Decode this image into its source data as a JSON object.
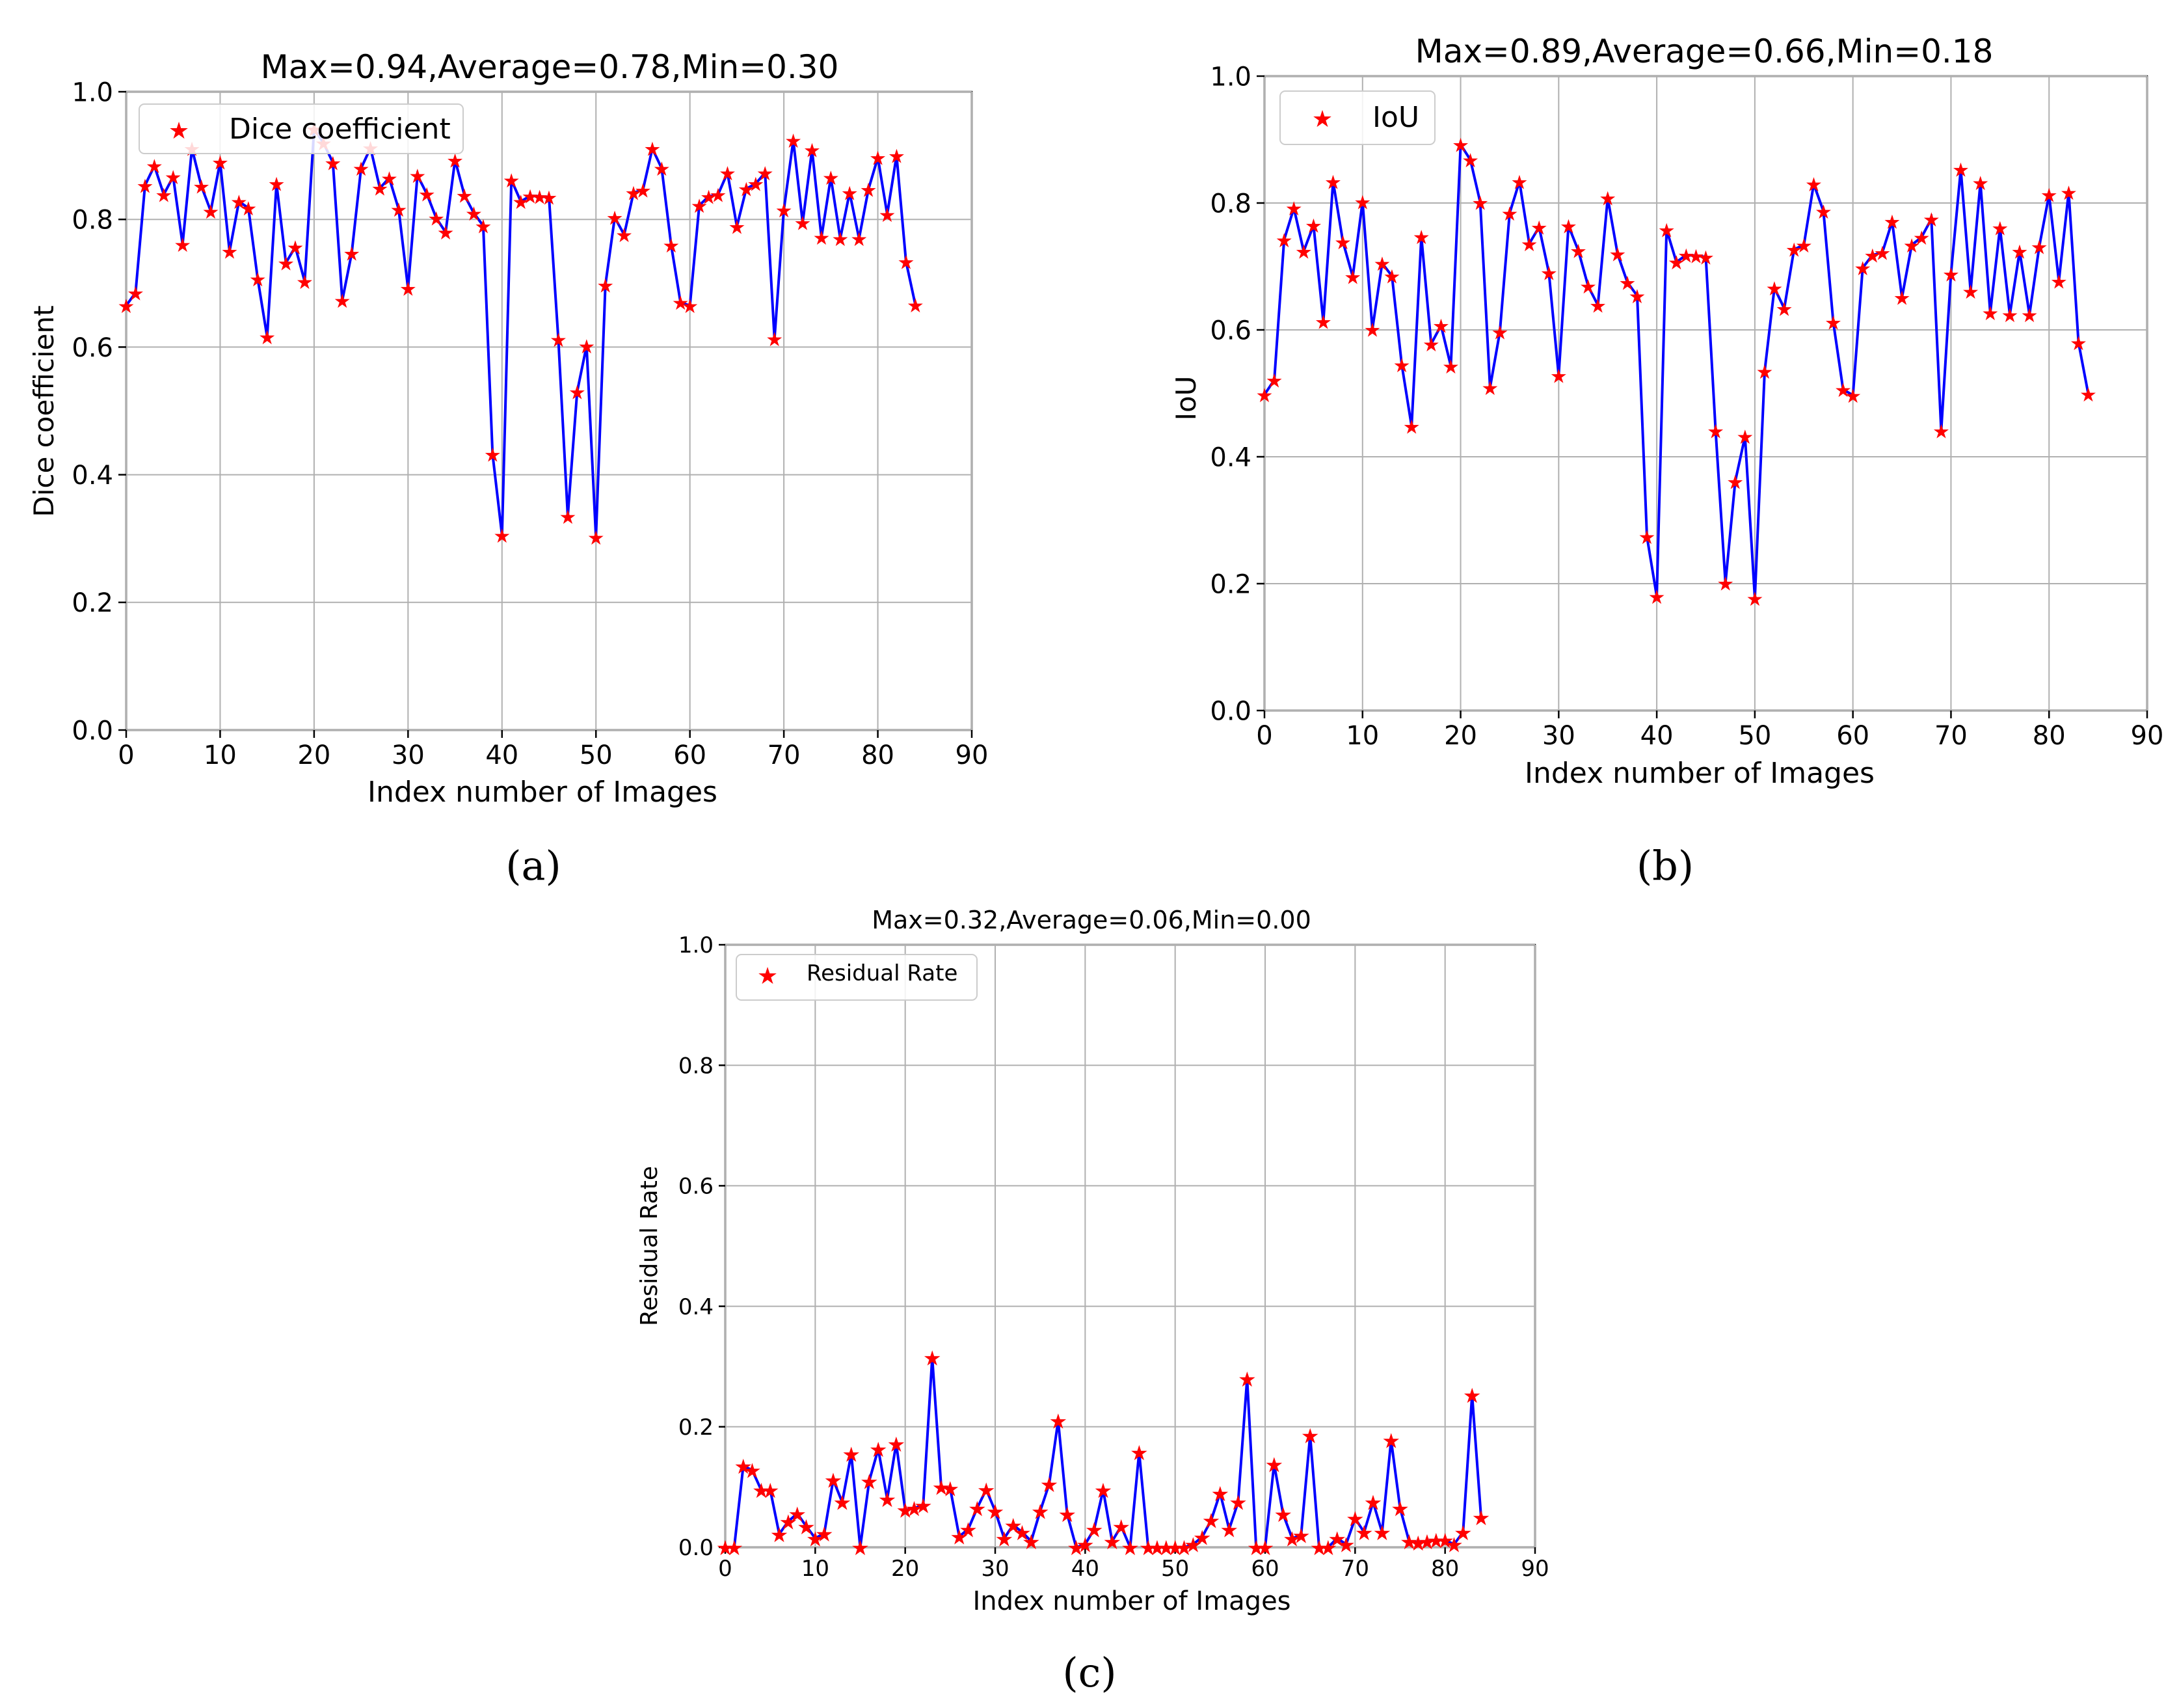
{
  "chart_data": [
    {
      "type": "line",
      "panel_label": "(a)",
      "title": "Max=0.94,Average=0.78,Min=0.30",
      "xlabel": "Index number of Images",
      "ylabel": "Dice coefficient",
      "xlim": [
        0,
        90
      ],
      "ylim": [
        0,
        1.0
      ],
      "xticks": [
        0,
        10,
        20,
        30,
        40,
        50,
        60,
        70,
        80,
        90
      ],
      "yticks": [
        0.0,
        0.2,
        0.4,
        0.6,
        0.8,
        1.0
      ],
      "xtick_labels": [
        "0",
        "10",
        "20",
        "30",
        "40",
        "50",
        "60",
        "70",
        "80",
        "90"
      ],
      "ytick_labels": [
        "0.0",
        "0.2",
        "0.4",
        "0.6",
        "0.8",
        "1.0"
      ],
      "grid": true,
      "legend": {
        "position": "top-left",
        "entries": [
          "Dice coefficient"
        ]
      },
      "series": [
        {
          "name": "Dice coefficient",
          "line_color": "#0000ff",
          "marker_color": "#ff0000",
          "x": [
            0,
            1,
            2,
            3,
            4,
            5,
            6,
            7,
            8,
            9,
            10,
            11,
            12,
            13,
            14,
            15,
            16,
            17,
            18,
            19,
            20,
            21,
            22,
            23,
            24,
            25,
            26,
            27,
            28,
            29,
            30,
            31,
            32,
            33,
            34,
            35,
            36,
            37,
            38,
            39,
            40,
            41,
            42,
            43,
            44,
            45,
            46,
            47,
            48,
            49,
            50,
            51,
            52,
            53,
            54,
            55,
            56,
            57,
            58,
            59,
            60,
            61,
            62,
            63,
            64,
            65,
            66,
            67,
            68,
            69,
            70,
            71,
            72,
            73,
            74,
            75,
            76,
            77,
            78,
            79,
            80,
            81,
            82,
            83,
            84
          ],
          "values": [
            0.665,
            0.685,
            0.853,
            0.884,
            0.839,
            0.867,
            0.761,
            0.911,
            0.852,
            0.813,
            0.89,
            0.75,
            0.828,
            0.818,
            0.707,
            0.616,
            0.856,
            0.732,
            0.757,
            0.703,
            0.942,
            0.92,
            0.889,
            0.673,
            0.747,
            0.88,
            0.912,
            0.849,
            0.865,
            0.816,
            0.692,
            0.869,
            0.84,
            0.802,
            0.78,
            0.893,
            0.838,
            0.81,
            0.79,
            0.432,
            0.305,
            0.862,
            0.828,
            0.837,
            0.836,
            0.835,
            0.612,
            0.335,
            0.53,
            0.602,
            0.302,
            0.697,
            0.803,
            0.776,
            0.842,
            0.846,
            0.911,
            0.88,
            0.76,
            0.67,
            0.665,
            0.822,
            0.836,
            0.839,
            0.873,
            0.789,
            0.848,
            0.856,
            0.873,
            0.613,
            0.815,
            0.924,
            0.795,
            0.909,
            0.772,
            0.866,
            0.77,
            0.842,
            0.77,
            0.847,
            0.897,
            0.808,
            0.9,
            0.734,
            0.666
          ]
        }
      ]
    },
    {
      "type": "line",
      "panel_label": "(b)",
      "title": "Max=0.89,Average=0.66,Min=0.18",
      "xlabel": "Index number of Images",
      "ylabel": "IoU",
      "xlim": [
        0,
        90
      ],
      "ylim": [
        0,
        1.0
      ],
      "xticks": [
        0,
        10,
        20,
        30,
        40,
        50,
        60,
        70,
        80,
        90
      ],
      "yticks": [
        0.0,
        0.2,
        0.4,
        0.6,
        0.8,
        1.0
      ],
      "xtick_labels": [
        "0",
        "10",
        "20",
        "30",
        "40",
        "50",
        "60",
        "70",
        "80",
        "90"
      ],
      "ytick_labels": [
        "0.0",
        "0.2",
        "0.4",
        "0.6",
        "0.8",
        "1.0"
      ],
      "grid": true,
      "legend": {
        "position": "top-left",
        "entries": [
          "IoU"
        ]
      },
      "series": [
        {
          "name": "IoU",
          "line_color": "#0000ff",
          "marker_color": "#ff0000",
          "x": [
            0,
            1,
            2,
            3,
            4,
            5,
            6,
            7,
            8,
            9,
            10,
            11,
            12,
            13,
            14,
            15,
            16,
            17,
            18,
            19,
            20,
            21,
            22,
            23,
            24,
            25,
            26,
            27,
            28,
            29,
            30,
            31,
            32,
            33,
            34,
            35,
            36,
            37,
            38,
            39,
            40,
            41,
            42,
            43,
            44,
            45,
            46,
            47,
            48,
            49,
            50,
            51,
            52,
            53,
            54,
            55,
            56,
            57,
            58,
            59,
            60,
            61,
            62,
            63,
            64,
            65,
            66,
            67,
            68,
            69,
            70,
            71,
            72,
            73,
            74,
            75,
            76,
            77,
            78,
            79,
            80,
            81,
            82,
            83,
            84
          ],
          "values": [
            0.498,
            0.521,
            0.742,
            0.792,
            0.724,
            0.765,
            0.613,
            0.834,
            0.739,
            0.684,
            0.802,
            0.601,
            0.705,
            0.685,
            0.545,
            0.448,
            0.747,
            0.578,
            0.607,
            0.543,
            0.892,
            0.868,
            0.801,
            0.509,
            0.597,
            0.784,
            0.834,
            0.736,
            0.762,
            0.69,
            0.528,
            0.764,
            0.725,
            0.669,
            0.639,
            0.808,
            0.72,
            0.675,
            0.654,
            0.274,
            0.18,
            0.758,
            0.707,
            0.718,
            0.717,
            0.715,
            0.441,
            0.201,
            0.361,
            0.432,
            0.177,
            0.535,
            0.666,
            0.634,
            0.727,
            0.734,
            0.83,
            0.787,
            0.612,
            0.506,
            0.497,
            0.698,
            0.718,
            0.722,
            0.771,
            0.651,
            0.734,
            0.746,
            0.775,
            0.441,
            0.688,
            0.853,
            0.661,
            0.832,
            0.627,
            0.761,
            0.624,
            0.724,
            0.624,
            0.731,
            0.813,
            0.677,
            0.817,
            0.58,
            0.499
          ]
        }
      ]
    },
    {
      "type": "line",
      "panel_label": "(c)",
      "title": "Max=0.32,Average=0.06,Min=0.00",
      "xlabel": "Index number of Images",
      "ylabel": "Residual Rate",
      "xlim": [
        0,
        90
      ],
      "ylim": [
        0,
        1.0
      ],
      "xticks": [
        0,
        10,
        20,
        30,
        40,
        50,
        60,
        70,
        80,
        90
      ],
      "yticks": [
        0.0,
        0.2,
        0.4,
        0.6,
        0.8,
        1.0
      ],
      "xtick_labels": [
        "0",
        "10",
        "20",
        "30",
        "40",
        "50",
        "60",
        "70",
        "80",
        "90"
      ],
      "ytick_labels": [
        "0.0",
        "0.2",
        "0.4",
        "0.6",
        "0.8",
        "1.0"
      ],
      "grid": true,
      "legend": {
        "position": "top-left",
        "entries": [
          "Residual Rate"
        ]
      },
      "series": [
        {
          "name": "Residual Rate",
          "line_color": "#0000ff",
          "marker_color": "#ff0000",
          "x": [
            0,
            1,
            2,
            3,
            4,
            5,
            6,
            7,
            8,
            9,
            10,
            11,
            12,
            13,
            14,
            15,
            16,
            17,
            18,
            19,
            20,
            21,
            22,
            23,
            24,
            25,
            26,
            27,
            28,
            29,
            30,
            31,
            32,
            33,
            34,
            35,
            36,
            37,
            38,
            39,
            40,
            41,
            42,
            43,
            44,
            45,
            46,
            47,
            48,
            49,
            50,
            51,
            52,
            53,
            54,
            55,
            56,
            57,
            58,
            59,
            60,
            61,
            62,
            63,
            64,
            65,
            66,
            67,
            68,
            69,
            70,
            71,
            72,
            73,
            74,
            75,
            76,
            77,
            78,
            79,
            80,
            81,
            82,
            83,
            84
          ],
          "values": [
            0.0,
            0.0,
            0.135,
            0.128,
            0.095,
            0.095,
            0.022,
            0.043,
            0.056,
            0.035,
            0.015,
            0.023,
            0.112,
            0.075,
            0.155,
            0.0,
            0.11,
            0.163,
            0.08,
            0.172,
            0.062,
            0.065,
            0.07,
            0.315,
            0.1,
            0.098,
            0.018,
            0.03,
            0.065,
            0.096,
            0.06,
            0.015,
            0.037,
            0.025,
            0.01,
            0.06,
            0.105,
            0.21,
            0.055,
            0.0,
            0.005,
            0.03,
            0.095,
            0.01,
            0.035,
            0.0,
            0.158,
            0.0,
            0.0,
            0.0,
            0.0,
            0.0,
            0.005,
            0.017,
            0.045,
            0.09,
            0.03,
            0.075,
            0.28,
            0.0,
            0.0,
            0.138,
            0.055,
            0.015,
            0.02,
            0.186,
            0.0,
            0.0,
            0.015,
            0.005,
            0.048,
            0.025,
            0.075,
            0.025,
            0.178,
            0.065,
            0.01,
            0.008,
            0.01,
            0.012,
            0.012,
            0.005,
            0.025,
            0.253,
            0.05
          ]
        }
      ]
    }
  ]
}
